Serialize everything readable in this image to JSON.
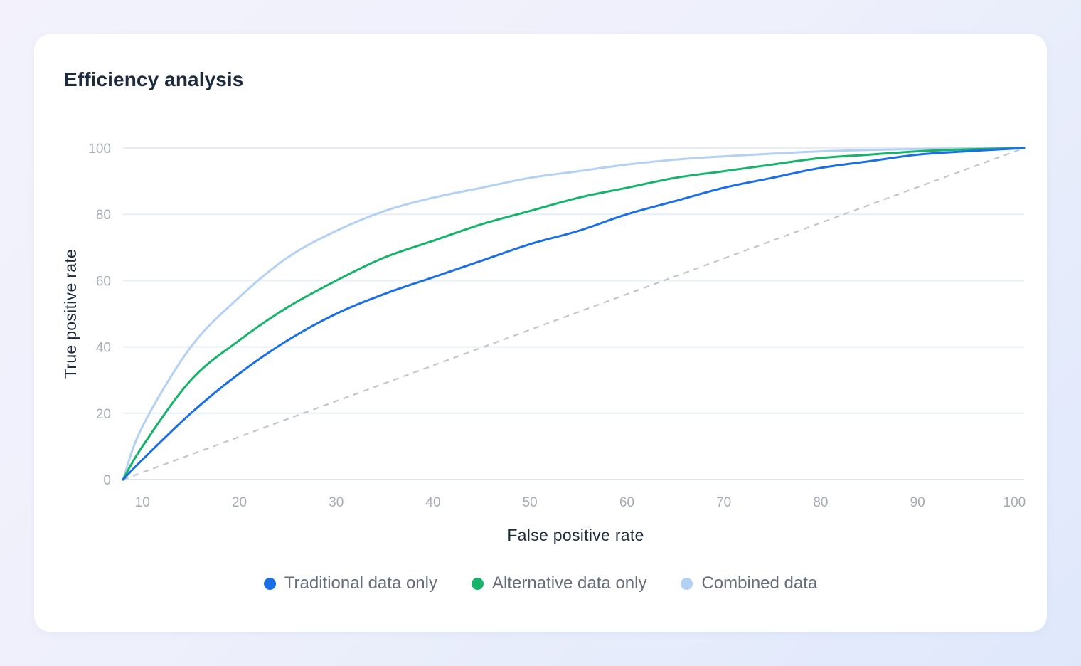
{
  "card": {
    "title": "Efficiency analysis"
  },
  "chart_data": {
    "type": "line",
    "title": "Efficiency analysis",
    "xlabel": "False positive rate",
    "ylabel": "True positive rate",
    "xlim": [
      8,
      101
    ],
    "ylim": [
      0,
      100
    ],
    "x_ticks": [
      10,
      20,
      30,
      40,
      50,
      60,
      70,
      80,
      90,
      100
    ],
    "y_ticks": [
      0,
      20,
      40,
      60,
      80,
      100
    ],
    "grid": "horizontal",
    "legend": "bottom-center",
    "series": [
      {
        "name": "Traditional data only",
        "color": "#1a6ee6",
        "x": [
          8,
          10,
          15,
          20,
          25,
          30,
          35,
          40,
          45,
          50,
          55,
          60,
          65,
          70,
          75,
          80,
          85,
          90,
          95,
          101
        ],
        "y": [
          0,
          6,
          20,
          32,
          42,
          50,
          56,
          61,
          66,
          71,
          75,
          80,
          84,
          88,
          91,
          94,
          96,
          98,
          99,
          100
        ]
      },
      {
        "name": "Alternative data only",
        "color": "#16b36b",
        "x": [
          8,
          10,
          15,
          20,
          25,
          30,
          35,
          40,
          45,
          50,
          55,
          60,
          65,
          70,
          75,
          80,
          85,
          90,
          95,
          101
        ],
        "y": [
          0,
          10,
          30,
          42,
          52,
          60,
          67,
          72,
          77,
          81,
          85,
          88,
          91,
          93,
          95,
          97,
          98,
          99,
          99.6,
          100
        ]
      },
      {
        "name": "Combined data",
        "color": "#b3d0f5",
        "x": [
          8,
          10,
          15,
          20,
          25,
          30,
          35,
          40,
          45,
          50,
          55,
          60,
          65,
          70,
          75,
          80,
          85,
          90,
          95,
          101
        ],
        "y": [
          0,
          16,
          40,
          55,
          67,
          75,
          81,
          85,
          88,
          91,
          93,
          95,
          96.5,
          97.5,
          98.3,
          99,
          99.4,
          99.7,
          99.9,
          100
        ]
      }
    ],
    "reference_line": {
      "style": "dashed",
      "color": "#c2c5cc",
      "x": [
        8,
        101
      ],
      "y": [
        0,
        100
      ]
    }
  }
}
